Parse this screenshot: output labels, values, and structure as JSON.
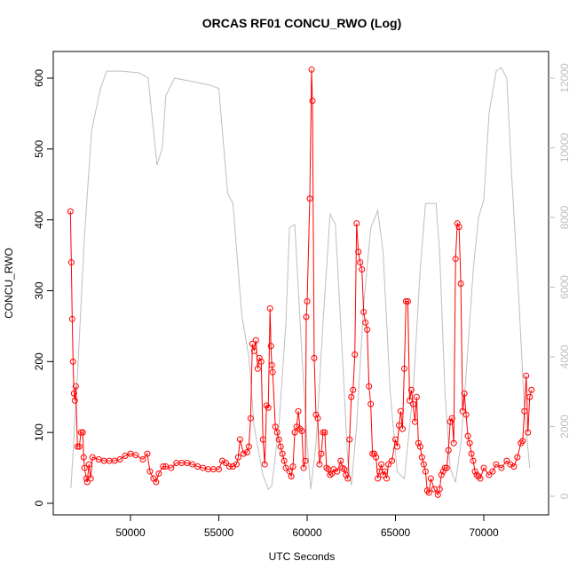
{
  "chart_data": {
    "type": "line",
    "title": "ORCAS RF01 CONCU_RWO (Log)",
    "x_label": "UTC Seconds",
    "y_label": "CONCU_RWO",
    "xlim": [
      45628,
      73668
    ],
    "xticks": [
      50000,
      55000,
      60000,
      65000,
      70000
    ],
    "ylim": [
      -16.3,
      637.6
    ],
    "yticks": [
      0,
      100,
      200,
      300,
      400,
      500,
      600
    ],
    "y2lim": [
      -535,
      12764
    ],
    "y2ticks": [
      0,
      2000,
      4000,
      6000,
      8000,
      10000,
      12000
    ],
    "series": [
      {
        "color": "#ff0000",
        "markers": true,
        "x": [
          46600,
          46650,
          46700,
          46750,
          46800,
          46850,
          46900,
          47000,
          47100,
          47200,
          47300,
          47350,
          47400,
          47500,
          47550,
          47650,
          47750,
          47850,
          48200,
          48500,
          48800,
          49100,
          49400,
          49700,
          50000,
          50300,
          50700,
          50950,
          51100,
          51300,
          51450,
          51600,
          51850,
          52000,
          52300,
          52600,
          52900,
          53200,
          53500,
          53800,
          54100,
          54400,
          54700,
          55000,
          55200,
          55400,
          55600,
          55800,
          56000,
          56100,
          56200,
          56400,
          56600,
          56700,
          56800,
          56900,
          57000,
          57100,
          57200,
          57300,
          57400,
          57500,
          57600,
          57700,
          57800,
          57900,
          57950,
          58000,
          58050,
          58200,
          58300,
          58400,
          58500,
          58600,
          58700,
          58800,
          59000,
          59100,
          59200,
          59300,
          59400,
          59500,
          59600,
          59700,
          59800,
          59900,
          59950,
          60000,
          60150,
          60250,
          60300,
          60400,
          60500,
          60600,
          60700,
          60800,
          60900,
          61000,
          61100,
          61200,
          61300,
          61400,
          61500,
          61700,
          61900,
          62000,
          62100,
          62200,
          62300,
          62400,
          62500,
          62600,
          62700,
          62800,
          62900,
          63000,
          63100,
          63200,
          63300,
          63400,
          63500,
          63600,
          63700,
          63800,
          63900,
          64000,
          64100,
          64200,
          64300,
          64400,
          64500,
          64600,
          64800,
          65000,
          65100,
          65200,
          65300,
          65400,
          65500,
          65600,
          65700,
          65800,
          65900,
          66000,
          66100,
          66200,
          66300,
          66400,
          66500,
          66600,
          66700,
          66800,
          66900,
          67000,
          67200,
          67400,
          67500,
          67600,
          67700,
          67800,
          67900,
          68000,
          68100,
          68200,
          68300,
          68400,
          68500,
          68600,
          68700,
          68800,
          68900,
          69000,
          69100,
          69200,
          69300,
          69400,
          69500,
          69600,
          69700,
          69800,
          70000,
          70300,
          70500,
          70700,
          71000,
          71300,
          71500,
          71700,
          71900,
          72100,
          72200,
          72300,
          72400,
          72500,
          72600,
          72700
        ],
        "values": [
          412,
          340,
          260,
          200,
          155,
          145,
          165,
          80,
          80,
          100,
          100,
          65,
          50,
          35,
          30,
          55,
          35,
          65,
          62,
          60,
          60,
          60,
          62,
          67,
          70,
          68,
          62,
          70,
          45,
          35,
          30,
          42,
          52,
          52,
          50,
          57,
          57,
          57,
          55,
          52,
          50,
          48,
          48,
          48,
          60,
          57,
          52,
          52,
          55,
          65,
          90,
          70,
          72,
          80,
          120,
          225,
          215,
          230,
          190,
          205,
          200,
          90,
          55,
          138,
          135,
          275,
          222,
          195,
          185,
          108,
          100,
          90,
          80,
          70,
          60,
          50,
          45,
          38,
          52,
          100,
          108,
          130,
          105,
          102,
          50,
          60,
          263,
          285,
          430,
          612,
          568,
          205,
          125,
          120,
          55,
          70,
          100,
          100,
          50,
          48,
          40,
          42,
          48,
          45,
          60,
          50,
          48,
          40,
          35,
          90,
          150,
          160,
          210,
          395,
          355,
          340,
          330,
          270,
          255,
          245,
          165,
          140,
          70,
          70,
          65,
          35,
          45,
          55,
          40,
          45,
          35,
          55,
          60,
          90,
          80,
          110,
          130,
          105,
          190,
          285,
          285,
          145,
          160,
          140,
          115,
          150,
          85,
          80,
          65,
          55,
          45,
          18,
          15,
          35,
          20,
          12,
          20,
          40,
          45,
          50,
          50,
          75,
          115,
          120,
          85,
          345,
          395,
          390,
          310,
          130,
          155,
          125,
          95,
          85,
          70,
          60,
          45,
          40,
          38,
          35,
          50,
          40,
          45,
          55,
          50,
          60,
          55,
          52,
          65,
          85,
          88,
          130,
          180,
          100,
          150,
          160
        ]
      },
      {
        "color": "#bebebe",
        "axis": "y2",
        "markers": false,
        "x": [
          46630,
          47000,
          47400,
          47800,
          48300,
          48650,
          49500,
          50500,
          51000,
          51300,
          51500,
          51800,
          52000,
          52500,
          53500,
          54500,
          55000,
          55500,
          55800,
          56300,
          56700,
          57000,
          57500,
          57800,
          58000,
          58400,
          58800,
          59000,
          59300,
          59600,
          60000,
          60200,
          60500,
          60900,
          61300,
          61600,
          62000,
          62300,
          62500,
          62800,
          63200,
          63600,
          64000,
          64300,
          64700,
          65100,
          65500,
          66000,
          66400,
          66700,
          67300,
          67500,
          67800,
          68100,
          68400,
          68700,
          69000,
          69400,
          69700,
          70000,
          70300,
          70700,
          71000,
          71300,
          71600,
          72000,
          72300,
          72600
        ],
        "values": [
          230,
          3500,
          7500,
          10500,
          11700,
          12200,
          12200,
          12150,
          12000,
          10500,
          9500,
          10000,
          11500,
          12000,
          11900,
          11800,
          11700,
          8700,
          8400,
          5200,
          4000,
          2000,
          600,
          200,
          300,
          2000,
          5000,
          7700,
          7800,
          5000,
          1500,
          200,
          1500,
          5000,
          8100,
          7800,
          4000,
          1000,
          300,
          2000,
          5500,
          7700,
          8200,
          7000,
          3000,
          700,
          500,
          3000,
          6500,
          8400,
          8400,
          7000,
          3000,
          800,
          400,
          1500,
          3500,
          6500,
          8000,
          8500,
          11000,
          12200,
          12300,
          12000,
          9000,
          5500,
          2500,
          800
        ]
      }
    ]
  }
}
